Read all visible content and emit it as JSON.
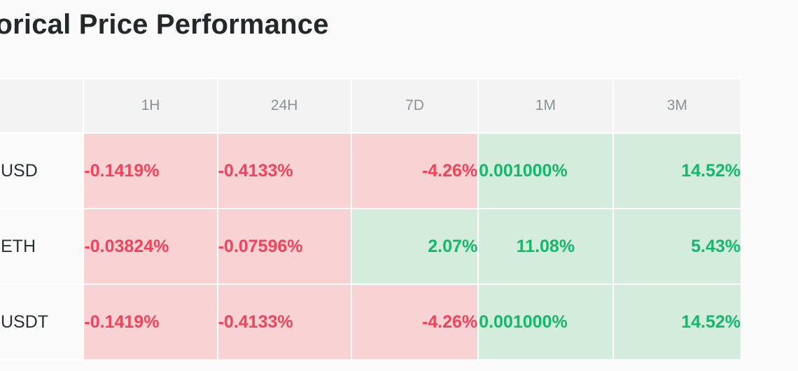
{
  "title": "torical Price Performance",
  "columns": [
    "1H",
    "24H",
    "7D",
    "1M",
    "3M"
  ],
  "rows": [
    {
      "pair": "USD",
      "cells": [
        {
          "value": "-0.1419%",
          "trend": "neg"
        },
        {
          "value": "-0.4133%",
          "trend": "neg"
        },
        {
          "value": "-4.26%",
          "trend": "neg"
        },
        {
          "value": "0.001000%",
          "trend": "pos"
        },
        {
          "value": "14.52%",
          "trend": "pos"
        }
      ]
    },
    {
      "pair": "ETH",
      "cells": [
        {
          "value": "-0.03824%",
          "trend": "neg"
        },
        {
          "value": "-0.07596%",
          "trend": "neg"
        },
        {
          "value": "2.07%",
          "trend": "pos"
        },
        {
          "value": "11.08%",
          "trend": "pos"
        },
        {
          "value": "5.43%",
          "trend": "pos"
        }
      ]
    },
    {
      "pair": "USDT",
      "cells": [
        {
          "value": "-0.1419%",
          "trend": "neg"
        },
        {
          "value": "-0.4133%",
          "trend": "neg"
        },
        {
          "value": "-4.26%",
          "trend": "neg"
        },
        {
          "value": "0.001000%",
          "trend": "pos"
        },
        {
          "value": "14.52%",
          "trend": "pos"
        }
      ]
    }
  ],
  "colors": {
    "negative_bg": "#f9d3d4",
    "negative_text": "#f2435a",
    "positive_bg": "#d3ecdc",
    "positive_text": "#14b86a",
    "header_bg": "#f3f3f3"
  }
}
